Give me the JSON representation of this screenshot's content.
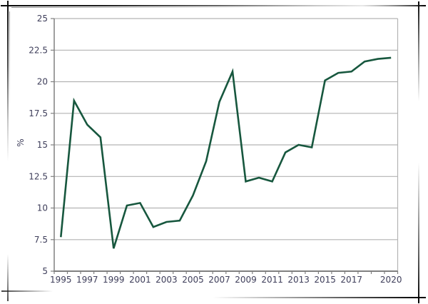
{
  "page": {
    "background": "#ffffff",
    "frame_style": "sketch-fade-border-with-corner-crosses"
  },
  "chart_data": {
    "type": "line",
    "title": "",
    "xlabel": "",
    "ylabel": "%",
    "ylim": [
      5,
      25
    ],
    "ytick_step": 2.5,
    "grid": true,
    "legend": "none",
    "categories": [
      1995,
      1996,
      1997,
      1998,
      1999,
      2000,
      2001,
      2002,
      2003,
      2004,
      2005,
      2006,
      2007,
      2008,
      2009,
      2010,
      2011,
      2012,
      2013,
      2014,
      2015,
      2016,
      2017,
      2018,
      2019,
      2020
    ],
    "values": [
      7.7,
      18.5,
      16.6,
      15.6,
      6.8,
      10.2,
      10.4,
      8.5,
      8.9,
      9.0,
      11.0,
      13.7,
      18.4,
      20.8,
      12.1,
      12.4,
      12.1,
      14.4,
      15.0,
      14.8,
      20.1,
      20.7,
      20.8,
      21.6,
      21.8,
      21.9
    ],
    "yticks": [
      {
        "value": 25,
        "label": "25"
      },
      {
        "value": 22.5,
        "label": "22.5"
      },
      {
        "value": 20,
        "label": "20"
      },
      {
        "value": 17.5,
        "label": "17.5"
      },
      {
        "value": 15,
        "label": "15"
      },
      {
        "value": 12.5,
        "label": "12.5"
      },
      {
        "value": 10,
        "label": "10"
      },
      {
        "value": 7.5,
        "label": "7.5"
      },
      {
        "value": 5,
        "label": "5"
      }
    ],
    "xtick_labels": [
      "1995",
      "1997",
      "1999",
      "2001",
      "2003",
      "2005",
      "2007",
      "2009",
      "2011",
      "2013",
      "2015",
      "2017",
      "2020"
    ],
    "colors": {
      "line": "#17573e",
      "grid": "#b3b3b3",
      "axis": "#808080",
      "tick_text": "#3e3e5a"
    }
  }
}
